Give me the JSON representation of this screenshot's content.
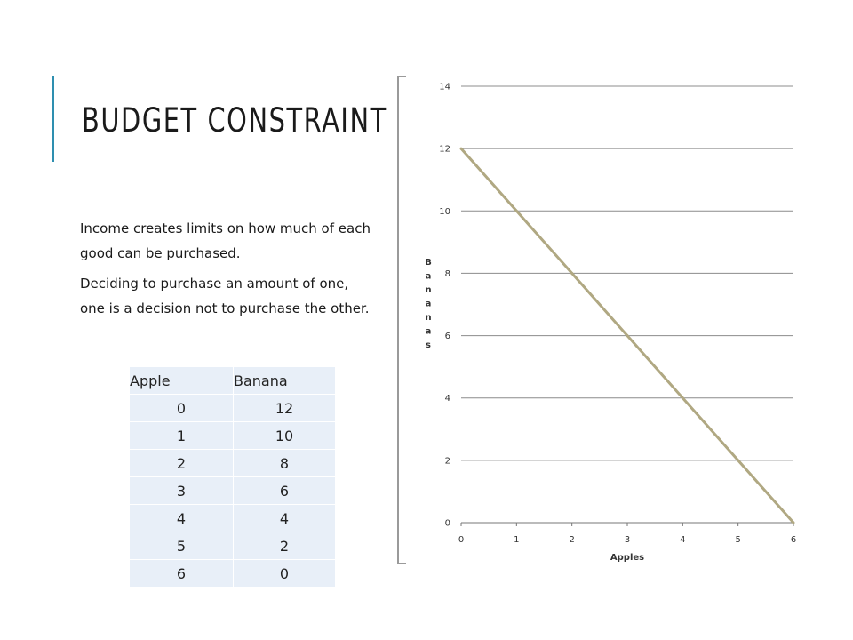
{
  "slide": {
    "title": "BUDGET CONSTRAINT",
    "paragraphs": [
      "Income creates limits on how much of each good can be purchased.",
      "Deciding to purchase an amount of one, one is a decision not to purchase the other."
    ],
    "accent_color": "#2e8fb0"
  },
  "table": {
    "headers": [
      "Apple",
      "Banana"
    ],
    "rows": [
      [
        "0",
        "12"
      ],
      [
        "1",
        "10"
      ],
      [
        "2",
        "8"
      ],
      [
        "3",
        "6"
      ],
      [
        "4",
        "4"
      ],
      [
        "5",
        "2"
      ],
      [
        "6",
        "0"
      ]
    ],
    "cell_color": "#e8eff8"
  },
  "chart_data": {
    "type": "line",
    "x": [
      0,
      1,
      2,
      3,
      4,
      5,
      6
    ],
    "series": [
      {
        "values": [
          12,
          10,
          8,
          6,
          4,
          2,
          0
        ],
        "color": "#b0a882"
      }
    ],
    "xlabel": "Apples",
    "ylabel": "Bananas",
    "xlim": [
      0,
      6
    ],
    "ylim": [
      0,
      14
    ],
    "x_ticks": [
      "0",
      "1",
      "2",
      "3",
      "4",
      "5",
      "6"
    ],
    "y_ticks": [
      "0",
      "2",
      "4",
      "6",
      "8",
      "10",
      "12",
      "14"
    ],
    "grid": true,
    "legend": "none"
  }
}
